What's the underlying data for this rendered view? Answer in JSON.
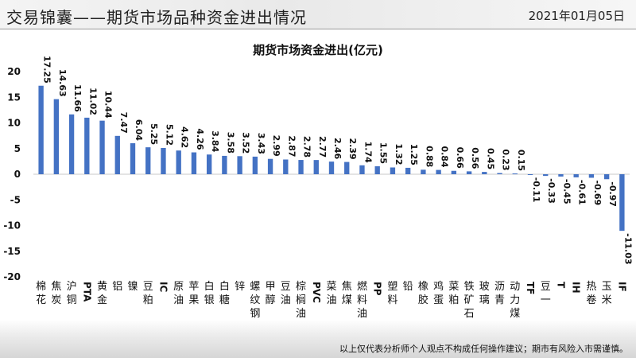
{
  "header": {
    "title": "交易锦囊——期货市场品种资金进出情况",
    "date": "2021年01月05日"
  },
  "footer": {
    "note": "以上仅代表分析师个人观点不构成任何操作建议；期市有风险入市需谨慎。"
  },
  "chart_data": {
    "type": "bar",
    "title": "期货市场资金进出(亿元)",
    "xlabel": "",
    "ylabel": "",
    "ylim": [
      -20,
      20
    ],
    "yticks": [
      20,
      15,
      10,
      5,
      0,
      -5,
      -10,
      -15,
      -20
    ],
    "grid": false,
    "bar_color": "#4472c4",
    "categories": [
      "棉花",
      "焦炭",
      "沪铜",
      "PTA",
      "黄金",
      "铝",
      "镍",
      "豆粕",
      "IC",
      "原油",
      "苹果",
      "白银",
      "白糖",
      "锌",
      "螺纹钢",
      "甲醇",
      "豆油",
      "棕榈油",
      "PVC",
      "菜油",
      "焦煤",
      "燃料油",
      "PP",
      "塑料",
      "铅",
      "橡胶",
      "鸡蛋",
      "菜粕",
      "铁矿石",
      "玻璃",
      "沥青",
      "动力煤",
      "TF",
      "豆一",
      "T",
      "IH",
      "热卷",
      "玉米",
      "IF"
    ],
    "values": [
      17.25,
      14.63,
      11.66,
      11.02,
      10.44,
      7.47,
      6.04,
      5.25,
      5.12,
      4.62,
      4.26,
      3.84,
      3.58,
      3.52,
      3.43,
      2.99,
      2.87,
      2.78,
      2.77,
      2.46,
      2.39,
      1.74,
      1.55,
      1.32,
      1.25,
      0.88,
      0.84,
      0.66,
      0.56,
      0.45,
      0.23,
      0.15,
      -0.11,
      -0.33,
      -0.45,
      -0.61,
      -0.69,
      -0.97,
      -11.03
    ],
    "value_labels": [
      "17.25",
      "14.63",
      "11.66",
      "11.02",
      "10.44",
      "7.47",
      "6.04",
      "5.25",
      "5.12",
      "4.62",
      "4.26",
      "3.84",
      "3.58",
      "3.52",
      "3.43",
      "2.99",
      "2.87",
      "2.78",
      "2.77",
      "2.46",
      "2.39",
      "1.74",
      "1.55",
      "1.32",
      "1.25",
      "0.88",
      "0.84",
      "0.66",
      "0.56",
      "0.45",
      "0.23",
      "0.15",
      "-0.11",
      "-0.33",
      "-0.45",
      "-0.61",
      "-0.69",
      "-0.97",
      "-11.03"
    ]
  }
}
